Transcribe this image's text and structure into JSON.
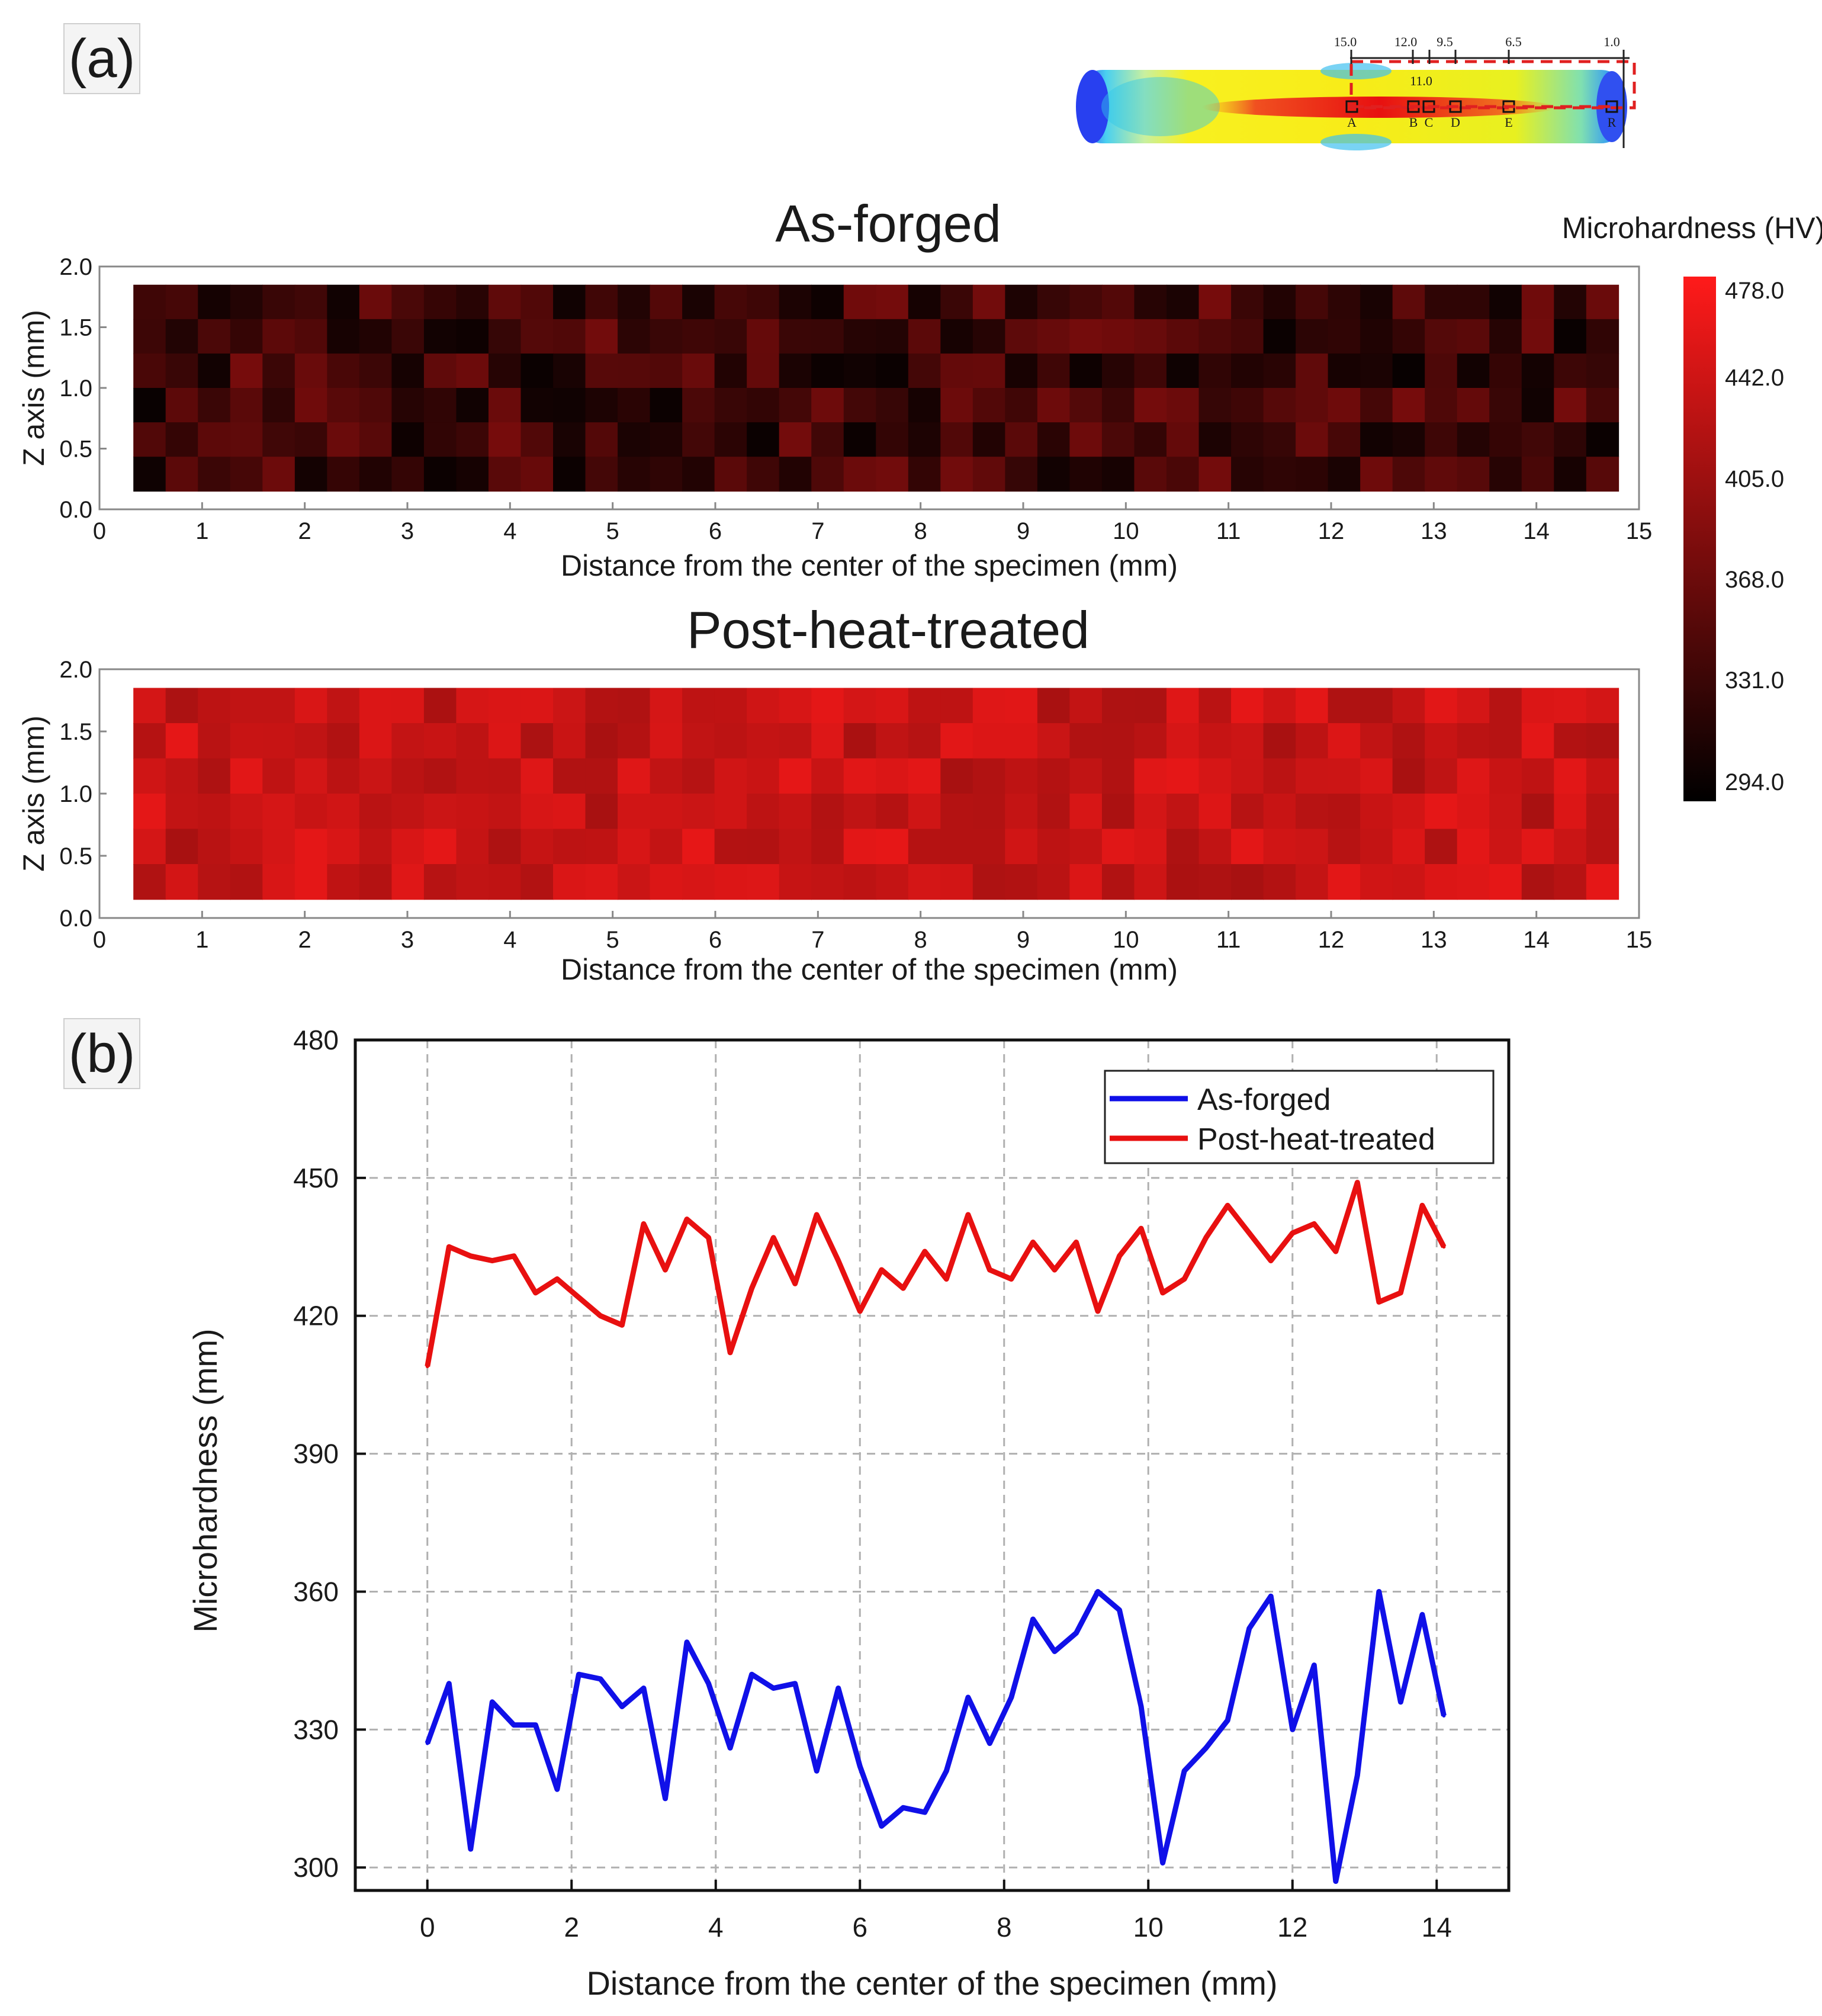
{
  "panels": {
    "a_label": "(a)",
    "b_label": "(b)"
  },
  "specimen_diagram": {
    "dimension_labels": [
      "15.0",
      "12.0",
      "9.5",
      "6.5",
      "1.0"
    ],
    "inner_label": "11.0",
    "point_labels": [
      "A",
      "B",
      "C",
      "D",
      "E",
      "R"
    ]
  },
  "colors": {
    "as_forged": "#1010e8",
    "post_heat_treated": "#e81010",
    "grid": "#b0b0b0",
    "cmap_low": "#000000",
    "cmap_high": "#ff1a1a"
  },
  "chart_data": [
    {
      "type": "heatmap",
      "title": "As-forged",
      "xlabel": "Distance from the center of the specimen (mm)",
      "ylabel": "Z axis (mm)",
      "xlim": [
        0,
        15
      ],
      "ylim": [
        0,
        2.0
      ],
      "xticks": [
        "0",
        "1",
        "2",
        "3",
        "4",
        "5",
        "6",
        "7",
        "8",
        "9",
        "10",
        "11",
        "12",
        "13",
        "14",
        "15"
      ],
      "yticks": [
        "0.0",
        "0.5",
        "1.0",
        "1.5",
        "2.0"
      ],
      "data_extent": {
        "x": [
          0.33,
          14.8
        ],
        "y": [
          0.15,
          1.85
        ]
      },
      "grid_shape": [
        6,
        46
      ],
      "value_range": [
        294,
        478
      ],
      "typical_range": [
        300,
        380
      ],
      "description_value_mean": 340
    },
    {
      "type": "heatmap",
      "title": "Post-heat-treated",
      "xlabel": "Distance from the center of the specimen (mm)",
      "ylabel": "Z axis (mm)",
      "xlim": [
        0,
        15
      ],
      "ylim": [
        0,
        2.0
      ],
      "xticks": [
        "0",
        "1",
        "2",
        "3",
        "4",
        "5",
        "6",
        "7",
        "8",
        "9",
        "10",
        "11",
        "12",
        "13",
        "14",
        "15"
      ],
      "yticks": [
        "0.0",
        "0.5",
        "1.0",
        "1.5",
        "2.0"
      ],
      "data_extent": {
        "x": [
          0.33,
          14.8
        ],
        "y": [
          0.15,
          1.85
        ]
      },
      "grid_shape": [
        6,
        46
      ],
      "value_range": [
        294,
        478
      ],
      "typical_range": [
        415,
        460
      ],
      "description_value_mean": 432
    },
    {
      "type": "colorbar",
      "title": "Microhardness (HV)",
      "ticks": [
        "478.0",
        "442.0",
        "405.0",
        "368.0",
        "331.0",
        "294.0"
      ],
      "range": [
        294,
        478
      ]
    },
    {
      "type": "line",
      "xlabel": "Distance from the center of the specimen (mm)",
      "ylabel": "Microhardness (mm)",
      "xlim": [
        -1,
        15
      ],
      "ylim": [
        295,
        480
      ],
      "xticks": [
        "0",
        "2",
        "4",
        "6",
        "8",
        "10",
        "12",
        "14"
      ],
      "yticks": [
        "300",
        "330",
        "360",
        "390",
        "420",
        "450",
        "480"
      ],
      "grid": true,
      "legend_position": "top-right",
      "x": [
        0,
        0.3,
        0.6,
        0.9,
        1.2,
        1.5,
        1.8,
        2.1,
        2.4,
        2.7,
        3.0,
        3.3,
        3.6,
        3.9,
        4.2,
        4.5,
        4.8,
        5.1,
        5.4,
        5.7,
        6.0,
        6.3,
        6.6,
        6.9,
        7.2,
        7.5,
        7.8,
        8.1,
        8.4,
        8.7,
        9.0,
        9.3,
        9.6,
        9.9,
        10.2,
        10.5,
        10.8,
        11.1,
        11.4,
        11.7,
        12.0,
        12.3,
        12.6,
        12.9,
        13.2,
        13.5,
        13.8,
        14.1
      ],
      "series": [
        {
          "name": "As-forged",
          "values": [
            327,
            340,
            304,
            336,
            331,
            331,
            317,
            342,
            341,
            335,
            339,
            315,
            349,
            340,
            326,
            342,
            339,
            340,
            321,
            339,
            322,
            309,
            313,
            312,
            321,
            337,
            327,
            337,
            354,
            347,
            351,
            360,
            356,
            335,
            301,
            321,
            326,
            332,
            352,
            359,
            330,
            344,
            297,
            320,
            360,
            336,
            355,
            333
          ]
        },
        {
          "name": "Post-heat-treated",
          "values": [
            409,
            435,
            433,
            432,
            433,
            425,
            428,
            424,
            420,
            418,
            440,
            430,
            441,
            437,
            412,
            426,
            437,
            427,
            442,
            432,
            421,
            430,
            426,
            434,
            428,
            442,
            430,
            428,
            436,
            430,
            436,
            421,
            433,
            439,
            425,
            428,
            437,
            444,
            438,
            432,
            438,
            440,
            434,
            449,
            423,
            425,
            444,
            435
          ]
        }
      ]
    }
  ]
}
